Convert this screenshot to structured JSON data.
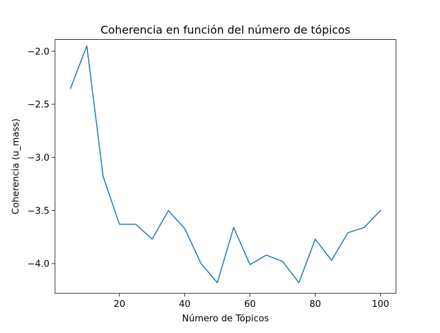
{
  "chart_data": {
    "type": "line",
    "title": "Coherencia en función del número de tópicos",
    "xlabel": "Número de Tópicos",
    "ylabel": "Coherencia (u_mass)",
    "xlim": [
      0.25,
      104.75
    ],
    "ylim": [
      -4.28,
      -1.89
    ],
    "xticks": [
      20,
      40,
      60,
      80,
      100
    ],
    "xtick_labels": [
      "20",
      "40",
      "60",
      "80",
      "100"
    ],
    "yticks": [
      -4.0,
      -3.5,
      -3.0,
      -2.5,
      -2.0
    ],
    "ytick_labels": [
      "−4.0",
      "−3.5",
      "−3.0",
      "−2.5",
      "−2.0"
    ],
    "grid": false,
    "legend": "none",
    "series": [
      {
        "color": "#1f77b4",
        "x": [
          5,
          10,
          15,
          20,
          25,
          30,
          35,
          40,
          45,
          50,
          55,
          60,
          65,
          70,
          75,
          80,
          85,
          90,
          95,
          100
        ],
        "y": [
          -2.35,
          -1.95,
          -3.18,
          -3.63,
          -3.63,
          -3.77,
          -3.5,
          -3.67,
          -4.0,
          -4.18,
          -3.66,
          -4.01,
          -3.92,
          -3.98,
          -4.18,
          -3.77,
          -3.97,
          -3.71,
          -3.66,
          -3.5
        ]
      }
    ]
  }
}
